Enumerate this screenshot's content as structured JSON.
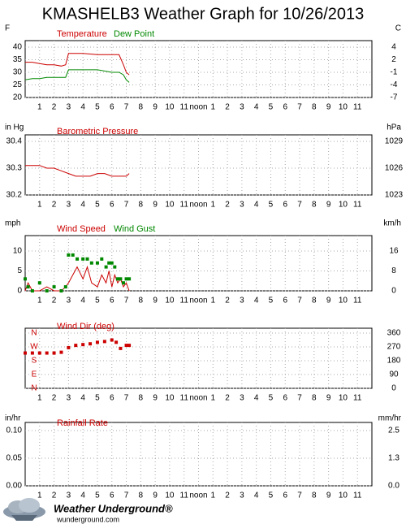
{
  "title": "KMASHELB3 Weather Graph for 10/26/2013",
  "footer": {
    "brand": "Weather Underground®",
    "url": "wunderground.com"
  },
  "chart_data": [
    {
      "type": "line",
      "ylabel": "F",
      "y2label": "C",
      "xlim": [
        0,
        24
      ],
      "xticks": [
        1,
        2,
        3,
        4,
        5,
        6,
        7,
        8,
        9,
        10,
        11,
        {
          "value": 12,
          "label": "noon"
        },
        {
          "value": 13,
          "label": "1"
        },
        {
          "value": 14,
          "label": "2"
        },
        {
          "value": 15,
          "label": "3"
        },
        {
          "value": 16,
          "label": "4"
        },
        {
          "value": 17,
          "label": "5"
        },
        {
          "value": 18,
          "label": "6"
        },
        {
          "value": 19,
          "label": "7"
        },
        {
          "value": 20,
          "label": "8"
        },
        {
          "value": 21,
          "label": "9"
        },
        {
          "value": 22,
          "label": "10"
        },
        {
          "value": 23,
          "label": "11"
        }
      ],
      "ylim": [
        20,
        40
      ],
      "yticks": [
        20,
        25,
        30,
        35,
        40
      ],
      "y2lim": [
        -6.67,
        4.44
      ],
      "y2ticks": [
        {
          "value": -6.67,
          "label": "-7"
        },
        {
          "value": -3.89,
          "label": "-4"
        },
        {
          "value": -1.11,
          "label": "-1"
        },
        {
          "value": 1.67,
          "label": "2"
        },
        {
          "value": 4.44,
          "label": "4"
        }
      ],
      "grid": true,
      "x": [
        0,
        0.5,
        1,
        1.5,
        2,
        2.5,
        2.8,
        3,
        4,
        5,
        6,
        6.5,
        6.8,
        7,
        7.2
      ],
      "series": [
        {
          "name": "Temperature",
          "color": "#cc0000",
          "values": [
            34,
            34,
            33.5,
            33,
            33,
            32.5,
            33,
            37.5,
            37.5,
            37,
            37,
            37,
            33,
            30,
            29
          ]
        },
        {
          "name": "Dew Point",
          "color": "#008800",
          "values": [
            27,
            27.5,
            27.5,
            28,
            28,
            28,
            28,
            31,
            31,
            31,
            30,
            30,
            29,
            27,
            26
          ]
        }
      ]
    },
    {
      "type": "line",
      "ylabel": "in Hg",
      "y2label": "hPa",
      "xlim": [
        0,
        24
      ],
      "xticks": [
        1,
        2,
        3,
        4,
        5,
        6,
        7,
        8,
        9,
        10,
        11,
        {
          "value": 12,
          "label": "noon"
        },
        {
          "value": 13,
          "label": "1"
        },
        {
          "value": 14,
          "label": "2"
        },
        {
          "value": 15,
          "label": "3"
        },
        {
          "value": 16,
          "label": "4"
        },
        {
          "value": 17,
          "label": "5"
        },
        {
          "value": 18,
          "label": "6"
        },
        {
          "value": 19,
          "label": "7"
        },
        {
          "value": 20,
          "label": "8"
        },
        {
          "value": 21,
          "label": "9"
        },
        {
          "value": 22,
          "label": "10"
        },
        {
          "value": 23,
          "label": "11"
        }
      ],
      "ylim": [
        30.2,
        30.4
      ],
      "yticks": [
        30.2,
        30.3,
        30.4
      ],
      "y2lim": [
        1022.68,
        1029.46
      ],
      "y2ticks": [
        {
          "value": 1022.68,
          "label": "1023"
        },
        {
          "value": 1026.07,
          "label": "1026"
        },
        {
          "value": 1029.46,
          "label": "1029"
        }
      ],
      "grid": true,
      "x": [
        0,
        0.5,
        1,
        1.5,
        2,
        2.5,
        3,
        3.5,
        4,
        4.5,
        5,
        5.5,
        6,
        6.5,
        7,
        7.2
      ],
      "series": [
        {
          "name": "Barometric Pressure",
          "color": "#cc0000",
          "values": [
            30.31,
            30.31,
            30.31,
            30.3,
            30.3,
            30.29,
            30.28,
            30.27,
            30.27,
            30.27,
            30.28,
            30.28,
            30.27,
            30.27,
            30.27,
            30.28
          ]
        }
      ]
    },
    {
      "type": "line",
      "ylabel": "mph",
      "y2label": "km/h",
      "xlim": [
        0,
        24
      ],
      "xticks": [
        1,
        2,
        3,
        4,
        5,
        6,
        7,
        8,
        9,
        10,
        11,
        {
          "value": 12,
          "label": "noon"
        },
        {
          "value": 13,
          "label": "1"
        },
        {
          "value": 14,
          "label": "2"
        },
        {
          "value": 15,
          "label": "3"
        },
        {
          "value": 16,
          "label": "4"
        },
        {
          "value": 17,
          "label": "5"
        },
        {
          "value": 18,
          "label": "6"
        },
        {
          "value": 19,
          "label": "7"
        },
        {
          "value": 20,
          "label": "8"
        },
        {
          "value": 21,
          "label": "9"
        },
        {
          "value": 22,
          "label": "10"
        },
        {
          "value": 23,
          "label": "11"
        }
      ],
      "ylim": [
        0,
        10
      ],
      "yticks": [
        0,
        5,
        10
      ],
      "y2lim": [
        0,
        16.09
      ],
      "y2ticks": [
        0,
        {
          "value": 8.05,
          "label": "8"
        },
        {
          "value": 16.09,
          "label": "16"
        }
      ],
      "grid": true,
      "x": [
        0,
        0.2,
        0.5,
        1,
        1.5,
        2,
        2.5,
        2.8,
        3,
        3.3,
        3.6,
        4,
        4.3,
        4.6,
        5,
        5.3,
        5.6,
        5.8,
        6,
        6.2,
        6.4,
        6.6,
        6.8,
        7,
        7.2
      ],
      "series": [
        {
          "name": "Wind Speed",
          "color": "#cc0000",
          "values": [
            0,
            2,
            0,
            0,
            1,
            0,
            0,
            1,
            2,
            4,
            6,
            3,
            6,
            2,
            1,
            4,
            2,
            5,
            1,
            4,
            2,
            3,
            1,
            2,
            0
          ]
        },
        {
          "name": "Wind Gust",
          "color": "#008800",
          "style": "markers",
          "values": [
            3,
            1,
            0,
            2,
            0,
            1,
            0,
            1,
            9,
            9,
            8,
            8,
            8,
            7,
            7,
            8,
            6,
            7,
            7,
            6,
            3,
            3,
            2,
            3,
            3
          ]
        }
      ]
    },
    {
      "type": "scatter",
      "y2label": null,
      "xlim": [
        0,
        24
      ],
      "xticks": [
        1,
        2,
        3,
        4,
        5,
        6,
        7,
        8,
        9,
        10,
        11,
        {
          "value": 12,
          "label": "noon"
        },
        {
          "value": 13,
          "label": "1"
        },
        {
          "value": 14,
          "label": "2"
        },
        {
          "value": 15,
          "label": "3"
        },
        {
          "value": 16,
          "label": "4"
        },
        {
          "value": 17,
          "label": "5"
        },
        {
          "value": 18,
          "label": "6"
        },
        {
          "value": 19,
          "label": "7"
        },
        {
          "value": 20,
          "label": "8"
        },
        {
          "value": 21,
          "label": "9"
        },
        {
          "value": 22,
          "label": "10"
        },
        {
          "value": 23,
          "label": "11"
        }
      ],
      "ylim": [
        0,
        360
      ],
      "yticks": [
        {
          "value": 0,
          "label": "N"
        },
        {
          "value": 90,
          "label": "E"
        },
        {
          "value": 180,
          "label": "S"
        },
        {
          "value": 270,
          "label": "W"
        },
        {
          "value": 360,
          "label": "N"
        }
      ],
      "ytick_color": "#cc0000",
      "ytick_inside": true,
      "y2lim": [
        0,
        360
      ],
      "y2ticks": [
        0,
        90,
        180,
        270,
        360
      ],
      "grid": true,
      "x": [
        0,
        0.5,
        1,
        1.5,
        2,
        2.5,
        3,
        3.5,
        4,
        4.5,
        5,
        5.5,
        6,
        6.3,
        6.6,
        7,
        7.2
      ],
      "series": [
        {
          "name": "Wind Dir (deg)",
          "color": "#cc0000",
          "values": [
            230,
            230,
            230,
            230,
            230,
            235,
            265,
            280,
            285,
            290,
            300,
            305,
            315,
            300,
            260,
            280,
            280
          ]
        }
      ]
    },
    {
      "type": "line",
      "ylabel": "in/hr",
      "y2label": "mm/hr",
      "xlim": [
        0,
        24
      ],
      "xticks": [
        1,
        2,
        3,
        4,
        5,
        6,
        7,
        8,
        9,
        10,
        11,
        {
          "value": 12,
          "label": "noon"
        },
        {
          "value": 13,
          "label": "1"
        },
        {
          "value": 14,
          "label": "2"
        },
        {
          "value": 15,
          "label": "3"
        },
        {
          "value": 16,
          "label": "4"
        },
        {
          "value": 17,
          "label": "5"
        },
        {
          "value": 18,
          "label": "6"
        },
        {
          "value": 19,
          "label": "7"
        },
        {
          "value": 20,
          "label": "8"
        },
        {
          "value": 21,
          "label": "9"
        },
        {
          "value": 22,
          "label": "10"
        },
        {
          "value": 23,
          "label": "11"
        }
      ],
      "ylim": [
        0,
        0.1
      ],
      "yticks": [
        {
          "value": 0,
          "label": "0.00"
        },
        0.05,
        {
          "value": 0.1,
          "label": "0.10"
        }
      ],
      "y2lim": [
        0,
        2.54
      ],
      "y2ticks": [
        {
          "value": 0,
          "label": "0.0"
        },
        {
          "value": 1.27,
          "label": "1.3"
        },
        {
          "value": 2.54,
          "label": "2.5"
        }
      ],
      "grid": true,
      "x": [],
      "series": [
        {
          "name": "Rainfall Rate",
          "color": "#cc0000",
          "values": []
        }
      ]
    }
  ]
}
